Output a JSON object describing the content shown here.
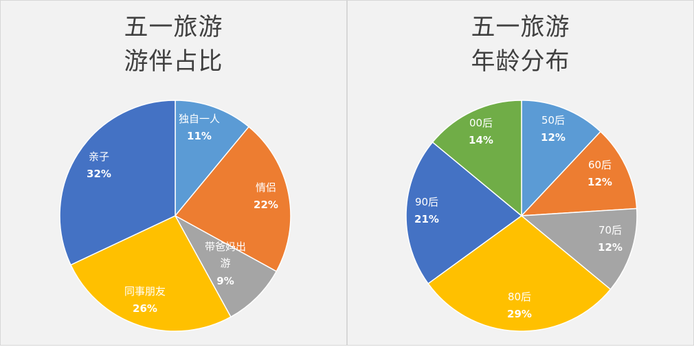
{
  "chart_data": [
    {
      "type": "pie",
      "title": [
        "五一旅游",
        "游伴占比"
      ],
      "slices": [
        {
          "label": "独自一人",
          "value": 11,
          "pct_text": "11%",
          "color": "#5b9bd5"
        },
        {
          "label": "情侣",
          "value": 22,
          "pct_text": "22%",
          "color": "#ed7d31"
        },
        {
          "label": "带爸妈出游",
          "value": 9,
          "pct_text": "9%",
          "color": "#a5a5a5"
        },
        {
          "label": "同事朋友",
          "value": 26,
          "pct_text": "26%",
          "color": "#ffc000"
        },
        {
          "label": "亲子",
          "value": 32,
          "pct_text": "32%",
          "color": "#4472c4"
        }
      ]
    },
    {
      "type": "pie",
      "title": [
        "五一旅游",
        "年龄分布"
      ],
      "slices": [
        {
          "label": "50后",
          "value": 12,
          "pct_text": "12%",
          "color": "#5b9bd5"
        },
        {
          "label": "60后",
          "value": 12,
          "pct_text": "12%",
          "color": "#ed7d31"
        },
        {
          "label": "70后",
          "value": 12,
          "pct_text": "12%",
          "color": "#a5a5a5"
        },
        {
          "label": "80后",
          "value": 29,
          "pct_text": "29%",
          "color": "#ffc000"
        },
        {
          "label": "90后",
          "value": 21,
          "pct_text": "21%",
          "color": "#4472c4"
        },
        {
          "label": "00后",
          "value": 14,
          "pct_text": "14%",
          "color": "#70ad47"
        }
      ]
    }
  ]
}
